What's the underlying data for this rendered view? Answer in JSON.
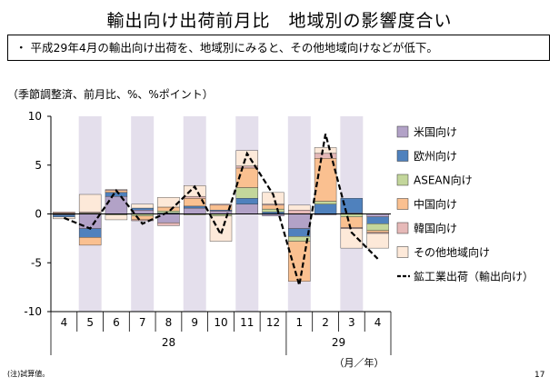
{
  "title": "輸出向け出荷前月比　地域別の影響度合い",
  "summary": "・ 平成29年4月の輸出向け出荷を、地域別にみると、その他地域向けなどが低下。",
  "units": "（季節調整済、前月比、%、%ポイント）",
  "note": "(注)試算値。",
  "page_number": "17",
  "axis_unit_label": "（月／年）",
  "chart_data": {
    "type": "bar",
    "stacked": true,
    "categories": [
      "4",
      "5",
      "6",
      "7",
      "8",
      "9",
      "10",
      "11",
      "12",
      "1",
      "2",
      "3",
      "4"
    ],
    "year_groups": [
      {
        "label": "28",
        "span": 9
      },
      {
        "label": "29",
        "span": 4
      }
    ],
    "shaded_categories": [
      1,
      3,
      5,
      7,
      9,
      11
    ],
    "ylim": [
      -10,
      10
    ],
    "yticks": [
      "10",
      "5",
      "0",
      "-5",
      "-10"
    ],
    "grid": false,
    "legend_position": "right",
    "series": [
      {
        "name": "米国向け",
        "color": "#b2a2c7",
        "values": [
          -0.1,
          -1.5,
          1.8,
          0.4,
          -0.9,
          0.6,
          0.3,
          1.0,
          -0.2,
          -1.5,
          -0.1,
          0.1,
          -0.3
        ]
      },
      {
        "name": "欧州向け",
        "color": "#4f81bd",
        "values": [
          -0.2,
          -0.9,
          0.4,
          0.2,
          0.1,
          0.2,
          0.1,
          0.6,
          0.2,
          -0.8,
          1.0,
          1.5,
          -0.7
        ]
      },
      {
        "name": "ASEAN向け",
        "color": "#c3d69b",
        "values": [
          0.0,
          0.1,
          -0.1,
          -0.2,
          0.2,
          -0.1,
          -0.2,
          1.1,
          0.3,
          -0.5,
          0.3,
          -0.3,
          -0.7
        ]
      },
      {
        "name": "中国向け",
        "color": "#fac090",
        "values": [
          0.1,
          -0.8,
          0.2,
          -0.4,
          0.4,
          0.8,
          0.5,
          2.0,
          0.4,
          -4.1,
          4.4,
          -1.1,
          -0.2
        ]
      },
      {
        "name": "韓国向け",
        "color": "#e6b9b8",
        "values": [
          0.1,
          0.1,
          0.1,
          -0.1,
          -0.3,
          0.2,
          0.1,
          0.2,
          0.1,
          0.4,
          0.5,
          -0.1,
          -0.1
        ]
      },
      {
        "name": "その他地域向け",
        "color": "#fde9d9",
        "values": [
          -0.2,
          1.8,
          -0.5,
          0.4,
          1.0,
          1.1,
          -2.6,
          1.6,
          1.2,
          0.5,
          0.6,
          -2.0,
          -1.5
        ]
      },
      {
        "name": "鉱工業出荷（輸出向け）",
        "type": "line",
        "color": "#000000",
        "dash": true,
        "values": [
          -0.4,
          -1.5,
          2.4,
          -1.0,
          0.2,
          2.8,
          -2.1,
          6.2,
          2.0,
          -7.3,
          8.2,
          -1.9,
          -4.6
        ]
      }
    ]
  }
}
